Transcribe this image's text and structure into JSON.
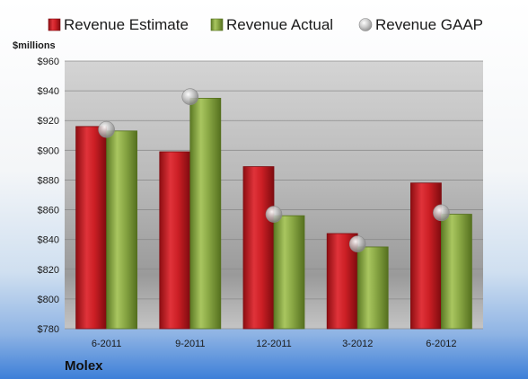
{
  "chart_data": {
    "type": "bar",
    "unit_label": "$millions",
    "company": "Molex",
    "categories": [
      "6-2011",
      "9-2011",
      "12-2011",
      "3-2012",
      "6-2012"
    ],
    "series": [
      {
        "name": "Revenue Estimate",
        "kind": "bar",
        "color": "#cc1f25",
        "values": [
          916,
          899,
          889,
          844,
          878
        ]
      },
      {
        "name": "Revenue Actual",
        "kind": "bar",
        "color": "#8aa845",
        "values": [
          913,
          935,
          856,
          835,
          857
        ]
      },
      {
        "name": "Revenue GAAP",
        "kind": "marker",
        "color": "#b8b8b8",
        "values": [
          914,
          936,
          857,
          837,
          858
        ]
      }
    ],
    "ylim": [
      780,
      960
    ],
    "yticks": [
      "$780",
      "$800",
      "$820",
      "$840",
      "$860",
      "$880",
      "$900",
      "$920",
      "$940",
      "$960"
    ],
    "ytick_values": [
      780,
      800,
      820,
      840,
      860,
      880,
      900,
      920,
      940,
      960
    ],
    "grid": true,
    "legend_position": "top"
  }
}
